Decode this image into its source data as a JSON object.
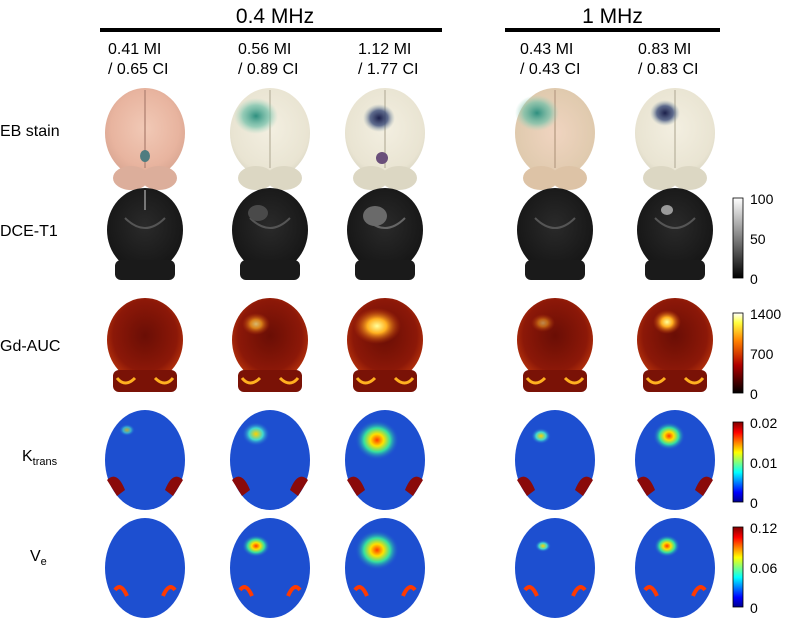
{
  "groups": {
    "g1": "0.4 MHz",
    "g2": "1 MHz"
  },
  "columns": [
    {
      "line1": "0.41 MI",
      "line2": "/ 0.65 CI"
    },
    {
      "line1": "0.56 MI",
      "line2": "/ 0.89 CI"
    },
    {
      "line1": "1.12 MI",
      "line2": "/ 1.77 CI"
    },
    {
      "line1": "0.43 MI",
      "line2": "/ 0.43 CI"
    },
    {
      "line1": "0.83 MI",
      "line2": "/ 0.83 CI"
    }
  ],
  "rows": {
    "eb": "EB stain",
    "dce": "DCE-T1",
    "gd": "Gd-AUC",
    "ktrans_main": "K",
    "ktrans_sub": "trans",
    "ve_main": "V",
    "ve_sub": "e"
  },
  "colorbars": {
    "dce": {
      "top": "100",
      "mid": "50",
      "bot": "0"
    },
    "gd": {
      "top": "1400",
      "mid": "700",
      "bot": "0"
    },
    "ktrans": {
      "top": "0.02",
      "mid": "0.01",
      "bot": "0"
    },
    "ve": {
      "top": "0.12",
      "mid": "0.06",
      "bot": "0"
    }
  }
}
